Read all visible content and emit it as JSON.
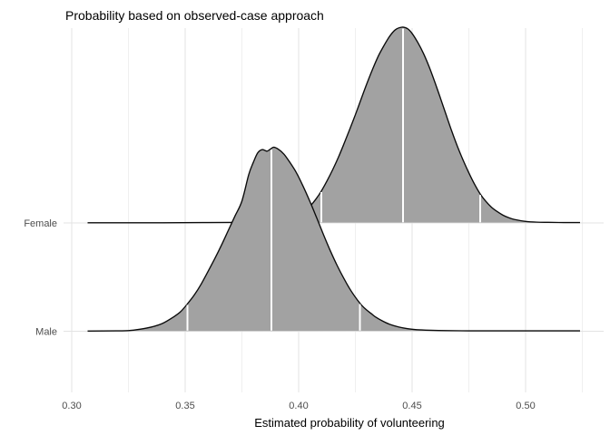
{
  "chart_data": {
    "type": "density_ridgeline",
    "title": "Probability based on observed-case approach",
    "xlabel": "Estimated probability of volunteering",
    "ylabel": "",
    "xlim": [
      0.296,
      0.534
    ],
    "grid": true,
    "legend": "none",
    "x_ticks": [
      {
        "value": 0.3,
        "label": "0.30"
      },
      {
        "value": 0.35,
        "label": "0.35"
      },
      {
        "value": 0.4,
        "label": "0.40"
      },
      {
        "value": 0.45,
        "label": "0.45"
      },
      {
        "value": 0.5,
        "label": "0.50"
      }
    ],
    "x_minor_ticks": [
      0.325,
      0.375,
      0.425,
      0.475,
      0.525
    ],
    "colors": {
      "fill": "#a2a2a2",
      "outline": "#0a0a0a",
      "quantile_line": "#ffffff",
      "grid_major": "#e3e3e3",
      "grid_minor": "#efefef",
      "axis_text": "#4d4d4d",
      "title_text": "#000000"
    },
    "series": [
      {
        "label": "Female",
        "median": 0.446,
        "q025": 0.41,
        "q975": 0.48,
        "quantile_lines": [
          0.41,
          0.446,
          0.48
        ],
        "curve": [
          [
            0.307,
            0.001
          ],
          [
            0.34,
            0.001
          ],
          [
            0.36,
            0.002
          ],
          [
            0.375,
            0.003
          ],
          [
            0.385,
            0.006
          ],
          [
            0.39,
            0.01
          ],
          [
            0.395,
            0.018
          ],
          [
            0.4,
            0.04
          ],
          [
            0.4025,
            0.058
          ],
          [
            0.405,
            0.085
          ],
          [
            0.4075,
            0.12
          ],
          [
            0.41,
            0.163
          ],
          [
            0.4125,
            0.215
          ],
          [
            0.415,
            0.272
          ],
          [
            0.4175,
            0.335
          ],
          [
            0.42,
            0.405
          ],
          [
            0.4225,
            0.478
          ],
          [
            0.425,
            0.553
          ],
          [
            0.4275,
            0.632
          ],
          [
            0.43,
            0.71
          ],
          [
            0.4325,
            0.783
          ],
          [
            0.435,
            0.85
          ],
          [
            0.4375,
            0.904
          ],
          [
            0.44,
            0.952
          ],
          [
            0.4425,
            0.986
          ],
          [
            0.4455,
            1.0
          ],
          [
            0.448,
            0.992
          ],
          [
            0.45,
            0.968
          ],
          [
            0.4525,
            0.922
          ],
          [
            0.455,
            0.866
          ],
          [
            0.4575,
            0.798
          ],
          [
            0.46,
            0.72
          ],
          [
            0.4625,
            0.637
          ],
          [
            0.465,
            0.552
          ],
          [
            0.4675,
            0.468
          ],
          [
            0.47,
            0.39
          ],
          [
            0.4725,
            0.32
          ],
          [
            0.475,
            0.256
          ],
          [
            0.4775,
            0.198
          ],
          [
            0.48,
            0.148
          ],
          [
            0.4825,
            0.11
          ],
          [
            0.485,
            0.08
          ],
          [
            0.4875,
            0.058
          ],
          [
            0.49,
            0.04
          ],
          [
            0.4925,
            0.027
          ],
          [
            0.495,
            0.018
          ],
          [
            0.5,
            0.008
          ],
          [
            0.505,
            0.004
          ],
          [
            0.51,
            0.003
          ],
          [
            0.517,
            0.002
          ],
          [
            0.524,
            0.002
          ]
        ]
      },
      {
        "label": "Male",
        "median": 0.388,
        "q025": 0.351,
        "q975": 0.427,
        "quantile_lines": [
          0.351,
          0.388,
          0.427
        ],
        "curve": [
          [
            0.307,
            0.001
          ],
          [
            0.32,
            0.002
          ],
          [
            0.325,
            0.003
          ],
          [
            0.33,
            0.01
          ],
          [
            0.335,
            0.021
          ],
          [
            0.34,
            0.04
          ],
          [
            0.345,
            0.074
          ],
          [
            0.348,
            0.1
          ],
          [
            0.351,
            0.14
          ],
          [
            0.354,
            0.185
          ],
          [
            0.357,
            0.24
          ],
          [
            0.36,
            0.304
          ],
          [
            0.363,
            0.37
          ],
          [
            0.366,
            0.44
          ],
          [
            0.369,
            0.515
          ],
          [
            0.372,
            0.59
          ],
          [
            0.375,
            0.665
          ],
          [
            0.378,
            0.8
          ],
          [
            0.38,
            0.862
          ],
          [
            0.382,
            0.912
          ],
          [
            0.384,
            0.928
          ],
          [
            0.386,
            0.92
          ],
          [
            0.3875,
            0.93
          ],
          [
            0.389,
            0.94
          ],
          [
            0.391,
            0.93
          ],
          [
            0.3935,
            0.905
          ],
          [
            0.396,
            0.865
          ],
          [
            0.399,
            0.81
          ],
          [
            0.402,
            0.74
          ],
          [
            0.405,
            0.662
          ],
          [
            0.408,
            0.578
          ],
          [
            0.411,
            0.492
          ],
          [
            0.414,
            0.41
          ],
          [
            0.417,
            0.335
          ],
          [
            0.42,
            0.268
          ],
          [
            0.423,
            0.208
          ],
          [
            0.426,
            0.158
          ],
          [
            0.428,
            0.13
          ],
          [
            0.43,
            0.108
          ],
          [
            0.432,
            0.09
          ],
          [
            0.434,
            0.072
          ],
          [
            0.437,
            0.052
          ],
          [
            0.44,
            0.036
          ],
          [
            0.444,
            0.022
          ],
          [
            0.448,
            0.013
          ],
          [
            0.452,
            0.008
          ],
          [
            0.458,
            0.005
          ],
          [
            0.465,
            0.003
          ],
          [
            0.475,
            0.002
          ],
          [
            0.49,
            0.002
          ],
          [
            0.507,
            0.002
          ],
          [
            0.524,
            0.002
          ]
        ]
      }
    ]
  }
}
